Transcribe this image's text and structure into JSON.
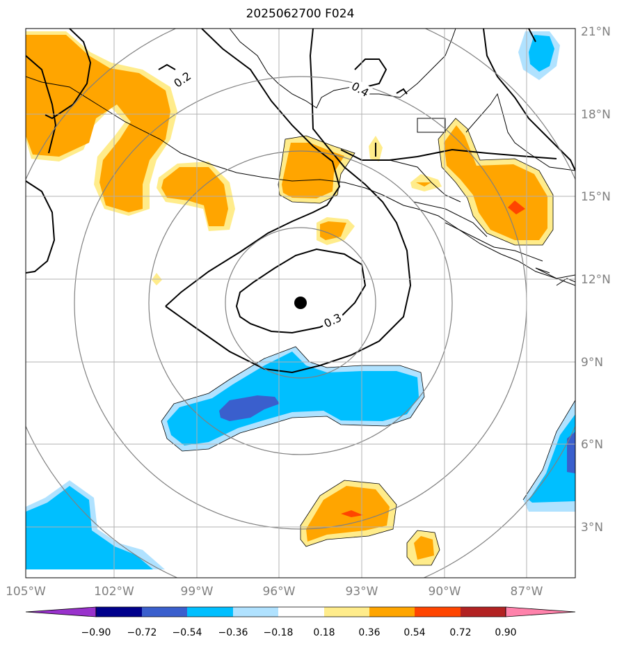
{
  "title": "2025062700 F024",
  "axes": {
    "lon_labels": [
      "105°W",
      "102°W",
      "99°W",
      "96°W",
      "93°W",
      "90°W",
      "87°W"
    ],
    "lat_labels": [
      "21°N",
      "18°N",
      "15°N",
      "12°N",
      "9°N",
      "6°N",
      "3°N"
    ]
  },
  "contour_labels": [
    "0.2",
    "0.4",
    "0.3"
  ],
  "colorbar": {
    "ticks": [
      "−0.90",
      "−0.72",
      "−0.54",
      "−0.36",
      "−0.18",
      "0.18",
      "0.36",
      "0.54",
      "0.72",
      "0.90"
    ],
    "colors": [
      "#9932cc",
      "#00008b",
      "#3a5fcd",
      "#00bfff",
      "#b0e2ff",
      "#ffffff",
      "#ffec8b",
      "#ffa500",
      "#ff4500",
      "#b22222",
      "#ff82ab"
    ]
  },
  "center_marker": "storm-center-dot"
}
